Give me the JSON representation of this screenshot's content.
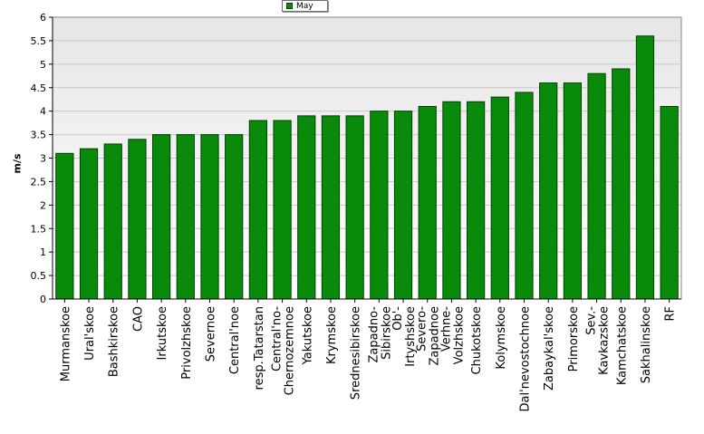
{
  "legend": {
    "label": "May",
    "color": "#0a8a0a"
  },
  "chart_data": {
    "type": "bar",
    "title": "",
    "xlabel": "",
    "ylabel": "m/s",
    "ylim": [
      0,
      6
    ],
    "yticks": [
      0,
      0.5,
      1,
      1.5,
      2,
      2.5,
      3,
      3.5,
      4,
      4.5,
      5,
      5.5,
      6
    ],
    "grid": true,
    "legend_position": "top",
    "series": [
      {
        "name": "May",
        "color": "#0a8a0a"
      }
    ],
    "categories": [
      "Murmanskoe",
      "Ural'skoe",
      "Bashkirskoe",
      "CAO",
      "Irkutskoe",
      "Privolzhskoe",
      "Severnoe",
      "Central'noe",
      "resp.Tatarstan",
      "Central'no-\nChernozemnoe",
      "Yakutskoe",
      "Krymskoe",
      "Srednesibirskoe",
      "Zapadno-\nSibirskoe",
      "Ob'-\nIrtyshskoe",
      "Severo-\nZapadnoe",
      "Verhne-\nVolzhskoe",
      "Chukotskoe",
      "Kolymskoe",
      "Dal'nevostochnoe",
      "Zabaykal'skoe",
      "Primorskoe",
      "Sev.-\nKavkazskoe",
      "Kamchatskoe",
      "Sakhalinskoe",
      "RF"
    ],
    "values": [
      3.1,
      3.2,
      3.3,
      3.4,
      3.5,
      3.5,
      3.5,
      3.5,
      3.8,
      3.8,
      3.9,
      3.9,
      3.9,
      4.0,
      4.0,
      4.1,
      4.2,
      4.2,
      4.3,
      4.4,
      4.6,
      4.6,
      4.8,
      4.9,
      5.6,
      4.1
    ]
  }
}
